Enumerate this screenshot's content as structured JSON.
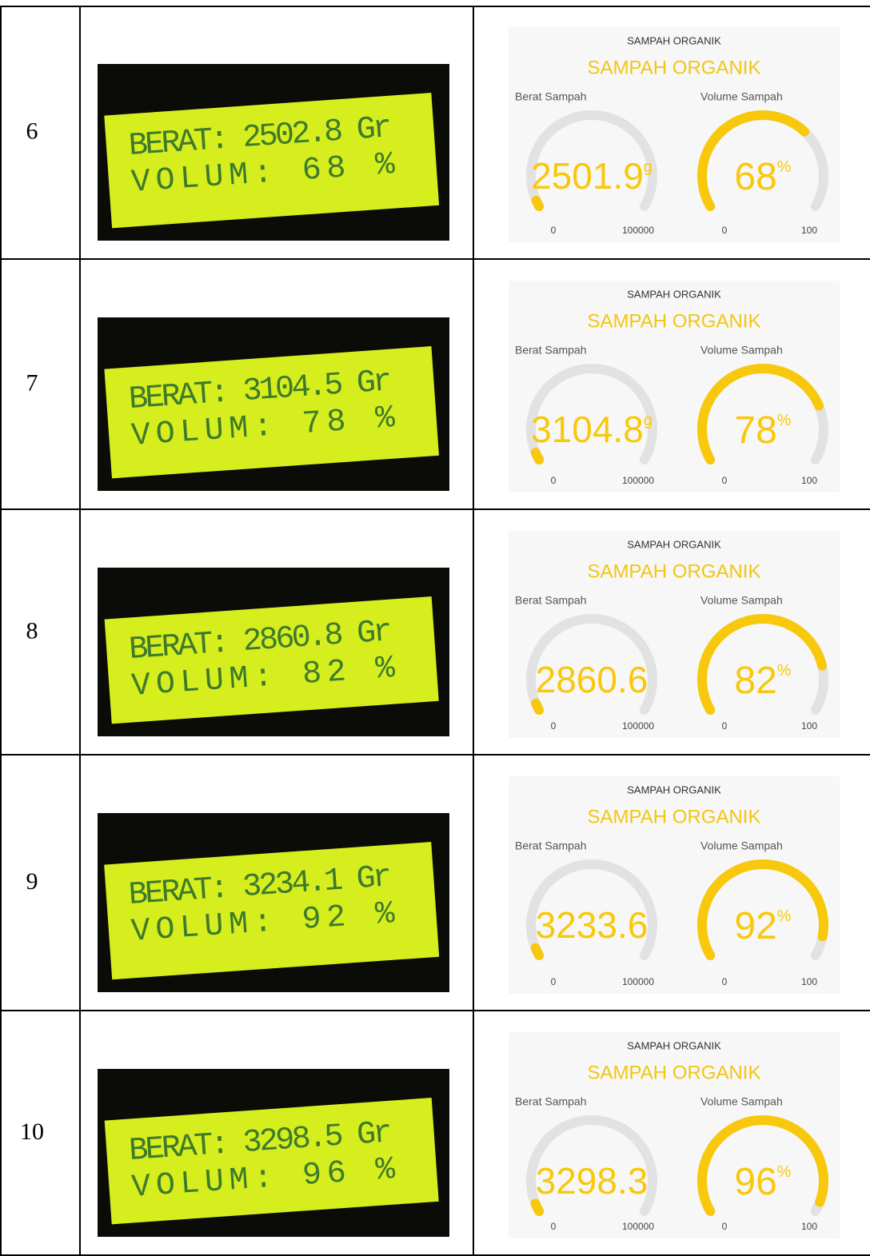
{
  "table": {
    "rows": [
      {
        "no": "6",
        "lcd": [
          "BERAT: 2502.8 Gr",
          "VOLUM: 68 %"
        ],
        "dashboard": {
          "header": "SAMPAH ORGANIK",
          "title": "SAMPAH ORGANIK",
          "gauges": [
            {
              "label": "Berat Sampah",
              "value": 2501.9,
              "unit": "g",
              "min": 0,
              "max": 100000
            },
            {
              "label": "Volume Sampah",
              "value": 68,
              "unit": "%",
              "min": 0,
              "max": 100
            }
          ]
        }
      },
      {
        "no": "7",
        "lcd": [
          "BERAT: 3104.5 Gr",
          "VOLUM: 78 %"
        ],
        "dashboard": {
          "header": "SAMPAH ORGANIK",
          "title": "SAMPAH ORGANIK",
          "gauges": [
            {
              "label": "Berat Sampah",
              "value": 3104.8,
              "unit": "g",
              "min": 0,
              "max": 100000
            },
            {
              "label": "Volume Sampah",
              "value": 78,
              "unit": "%",
              "min": 0,
              "max": 100
            }
          ]
        }
      },
      {
        "no": "8",
        "lcd": [
          "BERAT: 2860.8 Gr",
          "VOLUM: 82 %"
        ],
        "dashboard": {
          "header": "SAMPAH ORGANIK",
          "title": "SAMPAH ORGANIK",
          "gauges": [
            {
              "label": "Berat Sampah",
              "value": 2860.6,
              "min": 0,
              "max": 100000
            },
            {
              "label": "Volume Sampah",
              "value": 82,
              "unit": "%",
              "min": 0,
              "max": 100
            }
          ]
        }
      },
      {
        "no": "9",
        "lcd": [
          "BERAT: 3234.1 Gr",
          "VOLUM: 92 %"
        ],
        "dashboard": {
          "header": "SAMPAH ORGANIK",
          "title": "SAMPAH ORGANIK",
          "gauges": [
            {
              "label": "Berat Sampah",
              "value": 3233.6,
              "min": 0,
              "max": 100000
            },
            {
              "label": "Volume Sampah",
              "value": 92,
              "unit": "%",
              "min": 0,
              "max": 100
            }
          ]
        }
      },
      {
        "no": "10",
        "lcd": [
          "BERAT: 3298.5 Gr",
          "VOLUM: 96 %"
        ],
        "dashboard": {
          "header": "SAMPAH ORGANIK",
          "title": "SAMPAH ORGANIK",
          "gauges": [
            {
              "label": "Berat Sampah",
              "value": 3298.3,
              "min": 0,
              "max": 100000
            },
            {
              "label": "Volume Sampah",
              "value": 96,
              "unit": "%",
              "min": 0,
              "max": 100
            }
          ]
        }
      }
    ]
  }
}
